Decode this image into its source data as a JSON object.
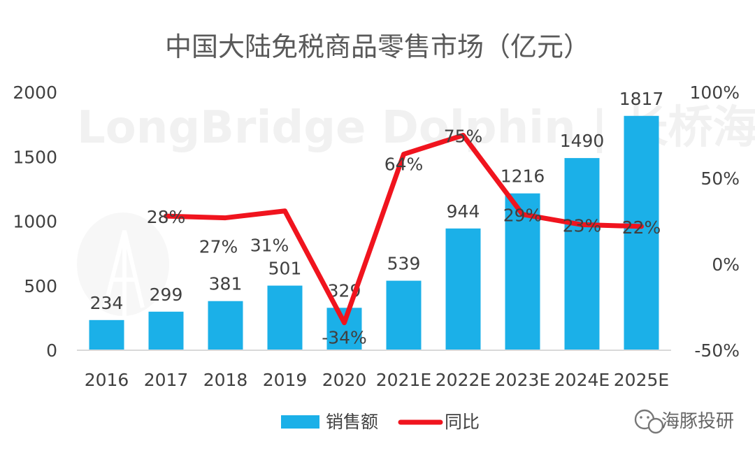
{
  "colors": {
    "bar": "#1bb0e8",
    "line": "#f0141e",
    "axis": "#d9d9d9",
    "text": "#404040"
  },
  "watermark": "LongBridge Dolphin | 长桥海豚投研",
  "brand": {
    "label": "海豚投研",
    "icon": "wechat-icon"
  },
  "chart_data": {
    "type": "bar",
    "title": "中国大陆免税商品零售市场（亿元）",
    "categories": [
      "2016",
      "2017",
      "2018",
      "2019",
      "2020",
      "2021E",
      "2022E",
      "2023E",
      "2024E",
      "2025E"
    ],
    "series": [
      {
        "name": "销售额",
        "type": "bar",
        "axis": "left",
        "values": [
          234,
          299,
          381,
          501,
          329,
          539,
          944,
          1216,
          1490,
          1817
        ],
        "labels": [
          "234",
          "299",
          "381",
          "501",
          "329",
          "539",
          "944",
          "1216",
          "1490",
          "1817"
        ]
      },
      {
        "name": "同比",
        "type": "line",
        "axis": "right",
        "values": [
          null,
          28,
          27,
          31,
          -34,
          64,
          75,
          29,
          23,
          22
        ],
        "labels": [
          "",
          "28%",
          "27%",
          "31%",
          "-34%",
          "64%",
          "75%",
          "29%",
          "23%",
          "22%"
        ]
      }
    ],
    "y_left": {
      "lim": [
        0,
        2000
      ],
      "ticks": [
        "0",
        "500",
        "1000",
        "1500",
        "2000"
      ]
    },
    "y_right": {
      "lim": [
        -50,
        100
      ],
      "ticks": [
        "-50%",
        "0%",
        "50%",
        "100%"
      ]
    },
    "legend": {
      "position": "bottom",
      "items": [
        "销售额",
        "同比"
      ]
    },
    "grid": false
  }
}
